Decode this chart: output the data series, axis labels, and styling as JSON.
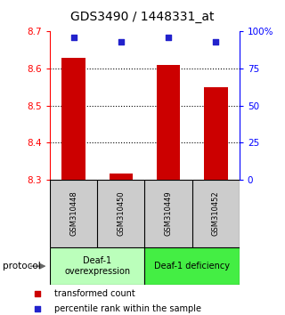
{
  "title": "GDS3490 / 1448331_at",
  "samples": [
    "GSM310448",
    "GSM310450",
    "GSM310449",
    "GSM310452"
  ],
  "bar_values": [
    8.63,
    8.317,
    8.61,
    8.55
  ],
  "percentile_values": [
    96,
    93,
    96,
    93
  ],
  "y_min": 8.3,
  "y_max": 8.7,
  "y_ticks": [
    8.3,
    8.4,
    8.5,
    8.6,
    8.7
  ],
  "pct_ticks": [
    0,
    25,
    50,
    75,
    100
  ],
  "pct_tick_labels": [
    "0",
    "25",
    "50",
    "75",
    "100%"
  ],
  "grid_lines": [
    8.4,
    8.5,
    8.6
  ],
  "bar_color": "#cc0000",
  "dot_color": "#2222cc",
  "group1_label": "Deaf-1\noverexpression",
  "group2_label": "Deaf-1 deficiency",
  "group1_color": "#bbffbb",
  "group2_color": "#44ee44",
  "sample_bg_color": "#cccccc",
  "protocol_label": "protocol",
  "legend_bar_label": "transformed count",
  "legend_dot_label": "percentile rank within the sample",
  "title_fontsize": 10,
  "tick_fontsize": 7.5,
  "legend_fontsize": 7,
  "sample_fontsize": 6,
  "group_fontsize": 7
}
